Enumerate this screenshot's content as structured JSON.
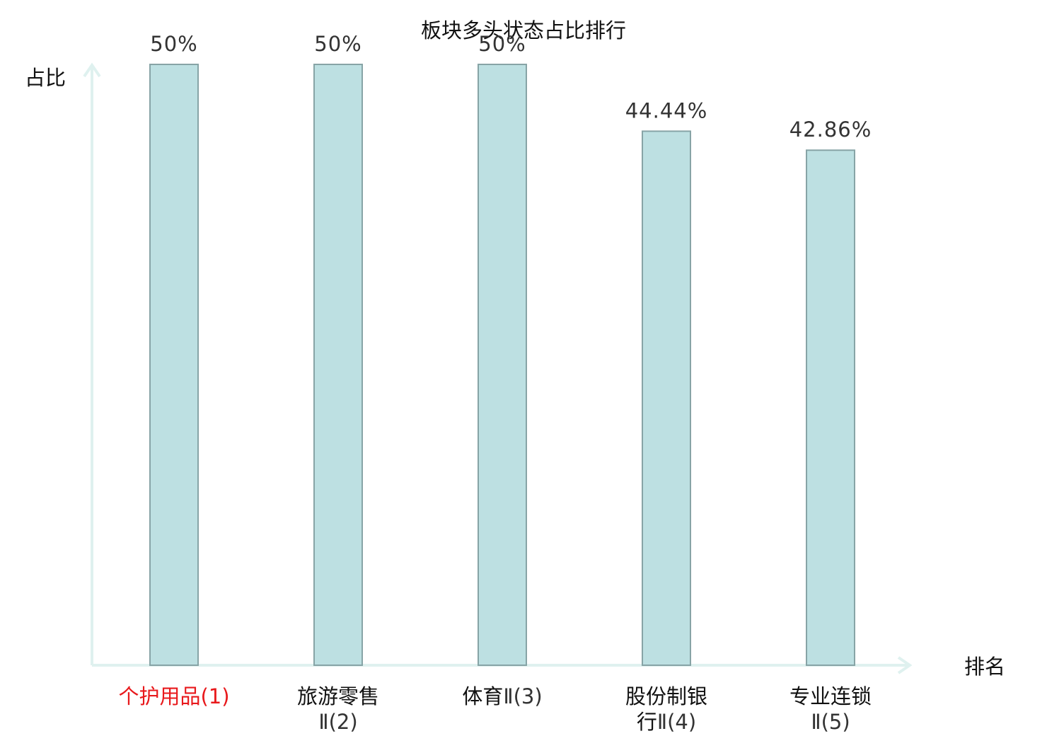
{
  "chart_data": {
    "type": "bar",
    "title": "板块多头状态占比排行",
    "xlabel": "排名",
    "ylabel": "占比",
    "categories": [
      {
        "lines": [
          {
            "cn": "个护用品",
            "suffix": "(1)"
          }
        ],
        "highlight": true
      },
      {
        "lines": [
          {
            "cn": "旅游零售",
            "suffix": ""
          },
          {
            "cn": "",
            "suffix": "Ⅱ(2)"
          }
        ],
        "highlight": false
      },
      {
        "lines": [
          {
            "cn": "体育",
            "suffix": "Ⅱ(3)"
          }
        ],
        "highlight": false
      },
      {
        "lines": [
          {
            "cn": "股份制银",
            "suffix": ""
          },
          {
            "cn": "行",
            "suffix": "Ⅱ(4)"
          }
        ],
        "highlight": false
      },
      {
        "lines": [
          {
            "cn": "专业连锁",
            "suffix": ""
          },
          {
            "cn": "",
            "suffix": "Ⅱ(5)"
          }
        ],
        "highlight": false
      }
    ],
    "values": [
      50,
      50,
      50,
      44.44,
      42.86
    ],
    "value_labels": [
      "50%",
      "50%",
      "50%",
      "44.44%",
      "42.86%"
    ],
    "ylim": [
      0,
      50
    ],
    "grid": false,
    "colors": {
      "bar_fill": "#bde0e2",
      "bar_stroke": "#87a4a6",
      "axis": "#dff1ef",
      "highlight_label": "#e8191c"
    }
  }
}
